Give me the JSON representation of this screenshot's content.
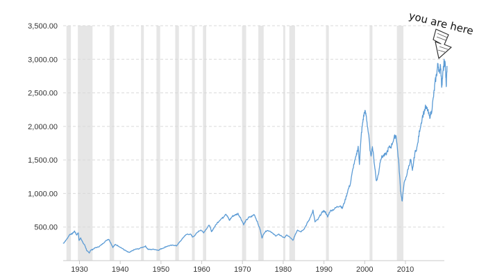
{
  "chart_data": {
    "type": "line",
    "title": "",
    "xlabel": "",
    "ylabel": "",
    "xlim": [
      1926,
      2017.5
    ],
    "ylim": [
      0,
      3500
    ],
    "grid": true,
    "x_ticks": [
      1930,
      1940,
      1950,
      1960,
      1970,
      1980,
      1990,
      2000,
      2010
    ],
    "y_ticks": [
      {
        "value": 500,
        "label": "500.00"
      },
      {
        "value": 1000,
        "label": "1,000.00"
      },
      {
        "value": 1500,
        "label": "1,500.00"
      },
      {
        "value": 2000,
        "label": "2,000.00"
      },
      {
        "value": 2500,
        "label": "2,500.00"
      },
      {
        "value": 3000,
        "label": "3,000.00"
      },
      {
        "value": 3500,
        "label": "3,500.00"
      }
    ],
    "line_color": "#5b9bd5",
    "shading_color": "#e6e6e6",
    "recession_periods": [
      [
        1926.8,
        1927.9
      ],
      [
        1929.6,
        1933.2
      ],
      [
        1937.4,
        1938.5
      ],
      [
        1945.1,
        1945.8
      ],
      [
        1948.9,
        1949.8
      ],
      [
        1953.5,
        1954.4
      ],
      [
        1957.6,
        1958.3
      ],
      [
        1960.3,
        1961.1
      ],
      [
        1969.9,
        1970.9
      ],
      [
        1973.9,
        1975.2
      ],
      [
        1980.0,
        1980.5
      ],
      [
        1981.5,
        1982.9
      ],
      [
        1990.5,
        1991.2
      ],
      [
        2001.2,
        2001.9
      ],
      [
        2007.9,
        2009.5
      ]
    ],
    "series": [
      {
        "name": "",
        "points": [
          [
            1926.0,
            255
          ],
          [
            1926.5,
            290
          ],
          [
            1927.0,
            330
          ],
          [
            1927.6,
            390
          ],
          [
            1928.2,
            400
          ],
          [
            1928.8,
            440
          ],
          [
            1929.3,
            380
          ],
          [
            1929.7,
            420
          ],
          [
            1929.9,
            300
          ],
          [
            1930.3,
            340
          ],
          [
            1930.8,
            270
          ],
          [
            1931.3,
            230
          ],
          [
            1931.8,
            150
          ],
          [
            1932.4,
            110
          ],
          [
            1932.7,
            155
          ],
          [
            1933.2,
            165
          ],
          [
            1933.8,
            190
          ],
          [
            1934.5,
            200
          ],
          [
            1935.3,
            230
          ],
          [
            1936.0,
            270
          ],
          [
            1936.8,
            310
          ],
          [
            1937.2,
            320
          ],
          [
            1937.7,
            260
          ],
          [
            1938.2,
            200
          ],
          [
            1938.8,
            240
          ],
          [
            1939.5,
            220
          ],
          [
            1940.3,
            190
          ],
          [
            1941.0,
            160
          ],
          [
            1941.8,
            130
          ],
          [
            1942.3,
            120
          ],
          [
            1943.0,
            150
          ],
          [
            1943.8,
            170
          ],
          [
            1944.5,
            175
          ],
          [
            1945.5,
            200
          ],
          [
            1946.2,
            215
          ],
          [
            1946.8,
            170
          ],
          [
            1947.5,
            165
          ],
          [
            1948.3,
            170
          ],
          [
            1949.3,
            155
          ],
          [
            1950.0,
            175
          ],
          [
            1950.8,
            195
          ],
          [
            1951.5,
            215
          ],
          [
            1952.3,
            225
          ],
          [
            1953.2,
            230
          ],
          [
            1953.8,
            220
          ],
          [
            1954.5,
            270
          ],
          [
            1955.3,
            330
          ],
          [
            1955.9,
            375
          ],
          [
            1956.5,
            395
          ],
          [
            1957.3,
            390
          ],
          [
            1957.8,
            350
          ],
          [
            1958.5,
            390
          ],
          [
            1959.2,
            440
          ],
          [
            1959.8,
            455
          ],
          [
            1960.5,
            420
          ],
          [
            1961.2,
            480
          ],
          [
            1961.9,
            530
          ],
          [
            1962.4,
            430
          ],
          [
            1963.0,
            490
          ],
          [
            1963.8,
            560
          ],
          [
            1964.5,
            610
          ],
          [
            1965.2,
            640
          ],
          [
            1965.9,
            700
          ],
          [
            1966.4,
            650
          ],
          [
            1966.8,
            600
          ],
          [
            1967.5,
            660
          ],
          [
            1968.2,
            680
          ],
          [
            1968.9,
            700
          ],
          [
            1969.5,
            640
          ],
          [
            1970.3,
            540
          ],
          [
            1970.8,
            590
          ],
          [
            1971.5,
            640
          ],
          [
            1972.3,
            660
          ],
          [
            1972.9,
            690
          ],
          [
            1973.5,
            600
          ],
          [
            1974.3,
            470
          ],
          [
            1974.8,
            340
          ],
          [
            1975.4,
            420
          ],
          [
            1976.0,
            450
          ],
          [
            1976.8,
            440
          ],
          [
            1977.5,
            400
          ],
          [
            1978.2,
            370
          ],
          [
            1978.9,
            390
          ],
          [
            1979.5,
            370
          ],
          [
            1980.2,
            340
          ],
          [
            1980.9,
            380
          ],
          [
            1981.6,
            350
          ],
          [
            1982.4,
            300
          ],
          [
            1982.9,
            380
          ],
          [
            1983.5,
            460
          ],
          [
            1984.3,
            430
          ],
          [
            1985.2,
            480
          ],
          [
            1985.9,
            560
          ],
          [
            1986.5,
            620
          ],
          [
            1987.3,
            750
          ],
          [
            1987.8,
            580
          ],
          [
            1988.5,
            610
          ],
          [
            1989.3,
            700
          ],
          [
            1989.9,
            740
          ],
          [
            1990.4,
            720
          ],
          [
            1990.9,
            650
          ],
          [
            1991.5,
            740
          ],
          [
            1992.3,
            760
          ],
          [
            1993.2,
            800
          ],
          [
            1994.0,
            820
          ],
          [
            1994.5,
            780
          ],
          [
            1995.2,
            900
          ],
          [
            1995.9,
            1050
          ],
          [
            1996.5,
            1150
          ],
          [
            1997.2,
            1400
          ],
          [
            1997.9,
            1550
          ],
          [
            1998.4,
            1700
          ],
          [
            1998.7,
            1450
          ],
          [
            1999.2,
            1900
          ],
          [
            1999.6,
            2100
          ],
          [
            2000.0,
            2230
          ],
          [
            2000.4,
            2150
          ],
          [
            2000.9,
            1900
          ],
          [
            2001.5,
            1550
          ],
          [
            2001.9,
            1700
          ],
          [
            2002.5,
            1380
          ],
          [
            2002.9,
            1180
          ],
          [
            2003.4,
            1300
          ],
          [
            2003.9,
            1520
          ],
          [
            2004.5,
            1560
          ],
          [
            2005.2,
            1580
          ],
          [
            2005.9,
            1680
          ],
          [
            2006.5,
            1700
          ],
          [
            2007.2,
            1830
          ],
          [
            2007.7,
            1870
          ],
          [
            2008.3,
            1500
          ],
          [
            2008.8,
            1050
          ],
          [
            2009.2,
            880
          ],
          [
            2009.6,
            1130
          ],
          [
            2010.2,
            1250
          ],
          [
            2010.7,
            1380
          ],
          [
            2011.3,
            1510
          ],
          [
            2011.7,
            1330
          ],
          [
            2012.3,
            1600
          ],
          [
            2012.9,
            1700
          ],
          [
            2013.5,
            1950
          ],
          [
            2014.2,
            2150
          ],
          [
            2014.9,
            2280
          ],
          [
            2015.4,
            2250
          ],
          [
            2015.9,
            2140
          ],
          [
            2016.4,
            2220
          ],
          [
            2016.9,
            2450
          ],
          [
            2017.3,
            2660
          ],
          [
            2017.7,
            2800
          ],
          [
            2018.0,
            2950
          ],
          [
            2018.3,
            2780
          ],
          [
            2018.6,
            2940
          ],
          [
            2018.9,
            2600
          ],
          [
            2019.2,
            2800
          ],
          [
            2019.5,
            2950
          ],
          [
            2019.8,
            2920
          ],
          [
            2020.0,
            2580
          ],
          [
            2020.2,
            2900
          ]
        ]
      }
    ],
    "annotation": "you are here"
  }
}
